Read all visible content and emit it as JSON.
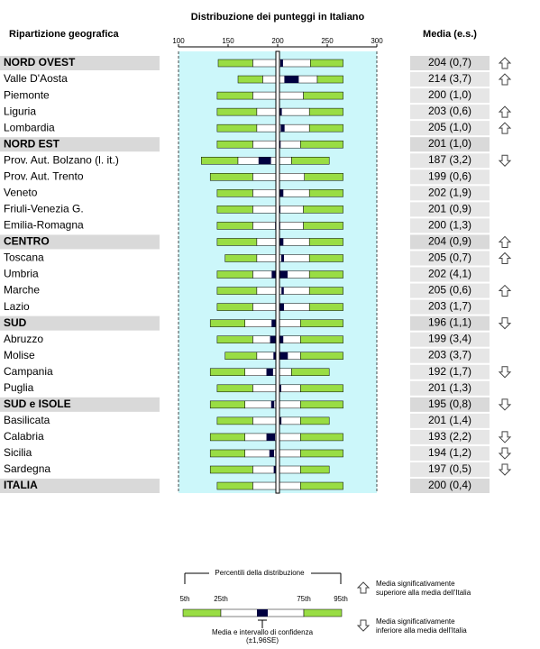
{
  "chart_data": {
    "type": "percentile-bar",
    "title": "Distribuzione dei punteggi in Italiano",
    "row_header": "Ripartizione geografica",
    "value_header": "Media (e.s.)",
    "xlim": [
      100,
      300
    ],
    "xticks": [
      100,
      150,
      200,
      250,
      300
    ],
    "categories": [
      "NORD OVEST",
      "Valle D'Aosta",
      "Piemonte",
      "Liguria",
      "Lombardia",
      "NORD EST",
      "Prov. Aut. Bolzano (l. it.)",
      "Prov. Aut. Trento",
      "Veneto",
      "Friuli-Venezia G.",
      "Emilia-Romagna",
      "CENTRO",
      "Toscana",
      "Umbria",
      "Marche",
      "Lazio",
      "SUD",
      "Abruzzo",
      "Molise",
      "Campania",
      "Puglia",
      "SUD e ISOLE",
      "Basilicata",
      "Calabria",
      "Sicilia",
      "Sardegna",
      "ITALIA"
    ],
    "group": [
      true,
      false,
      false,
      false,
      false,
      true,
      false,
      false,
      false,
      false,
      false,
      true,
      false,
      false,
      false,
      false,
      true,
      false,
      false,
      false,
      false,
      true,
      false,
      false,
      false,
      false,
      true
    ],
    "p5": [
      140,
      160,
      139,
      139,
      139,
      139,
      123,
      132,
      139,
      139,
      139,
      139,
      147,
      139,
      139,
      139,
      132,
      139,
      147,
      132,
      139,
      132,
      139,
      132,
      132,
      132,
      139
    ],
    "p25": [
      175,
      185,
      175,
      179,
      179,
      175,
      160,
      175,
      175,
      175,
      175,
      179,
      179,
      175,
      179,
      175,
      167,
      175,
      179,
      167,
      175,
      167,
      175,
      167,
      167,
      175,
      175
    ],
    "p75": [
      233,
      240,
      226,
      232,
      232,
      223,
      214,
      227,
      232,
      226,
      226,
      232,
      232,
      232,
      232,
      232,
      223,
      223,
      223,
      214,
      223,
      223,
      223,
      223,
      223,
      223,
      223
    ],
    "p95": [
      266,
      266,
      266,
      266,
      266,
      266,
      252,
      266,
      266,
      266,
      266,
      266,
      266,
      266,
      266,
      266,
      266,
      266,
      266,
      252,
      266,
      266,
      252,
      266,
      266,
      252,
      266
    ],
    "values": [
      204,
      214,
      200,
      203,
      205,
      201,
      187,
      199,
      202,
      201,
      200,
      204,
      205,
      202,
      205,
      203,
      196,
      199,
      203,
      192,
      201,
      195,
      201,
      193,
      194,
      197,
      200
    ],
    "se": [
      0.7,
      3.7,
      1.0,
      0.6,
      1.0,
      1.0,
      3.2,
      0.6,
      1.9,
      0.9,
      1.3,
      0.9,
      0.7,
      4.1,
      0.6,
      1.7,
      1.1,
      3.4,
      3.7,
      1.7,
      1.3,
      0.8,
      1.4,
      2.2,
      1.2,
      0.5,
      0.4
    ],
    "se_labels": [
      "(0,7)",
      "(3,7)",
      "(1,0)",
      "(0,6)",
      "(1,0)",
      "(1,0)",
      "(3,2)",
      "(0,6)",
      "(1,9)",
      "(0,9)",
      "(1,3)",
      "(0,9)",
      "(0,7)",
      "(4,1)",
      "(0,6)",
      "(1,7)",
      "(1,1)",
      "(3,4)",
      "(3,7)",
      "(1,7)",
      "(1,3)",
      "(0,8)",
      "(1,4)",
      "(2,2)",
      "(1,2)",
      "(0,5)",
      "(0,4)"
    ],
    "signif": [
      "up",
      "up",
      null,
      "up",
      "up",
      null,
      "down",
      null,
      null,
      null,
      null,
      "up",
      "up",
      null,
      "up",
      null,
      "down",
      null,
      null,
      "down",
      null,
      "down",
      null,
      "down",
      "down",
      "down",
      null
    ],
    "colors": {
      "tail": "#99dd44",
      "ci": "#000040",
      "band": "#ccf7fa"
    },
    "legend": {
      "title": "Percentili della distribuzione",
      "p5": "5th",
      "p25": "25th",
      "p75": "75th",
      "p95": "95th",
      "mean": "Media e intervallo di confidenza",
      "ci": "(±1,96SE)",
      "up": [
        "Media significativamente",
        "superiore alla media dell'Italia"
      ],
      "down": [
        "Media significativamente",
        "inferiore alla media dell'Italia"
      ]
    }
  }
}
